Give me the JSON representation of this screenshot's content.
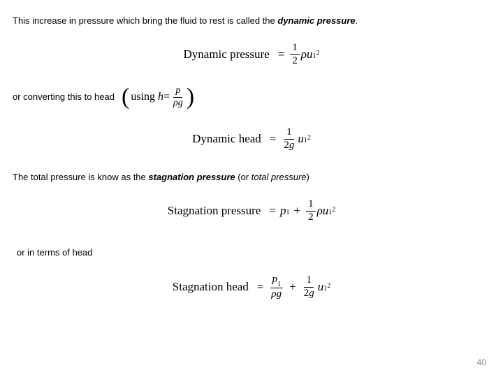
{
  "line1": {
    "before": "This increase in pressure which bring the fluid to rest is called the ",
    "bold": "dynamic pressure",
    "after": "."
  },
  "eq1": {
    "label": "Dynamic pressure",
    "eq": "=",
    "frac_num": "1",
    "frac_den": "2",
    "rho": "ρ",
    "u": "u",
    "sub": "1",
    "sup": "2"
  },
  "line2": {
    "text": "or converting this to head",
    "using": "using ",
    "h": "h",
    "eq": "=",
    "p": "p",
    "rho": "ρ",
    "g": "g"
  },
  "eq2": {
    "label": "Dynamic head",
    "eq": "=",
    "frac_num": "1",
    "frac_den_2": "2",
    "frac_den_g": "g",
    "u": "u",
    "sub": "1",
    "sup": "2"
  },
  "line3": {
    "before": "The total pressure is know as the ",
    "bold": "stagnation pressure",
    "mid": " (or ",
    "italic": "total pressure",
    "after": ")"
  },
  "eq3": {
    "label": "Stagnation pressure",
    "eq": "=",
    "p": "p",
    "psub": "1",
    "plus": "+",
    "frac_num": "1",
    "frac_den": "2",
    "rho": "ρ",
    "u": "u",
    "sub": "1",
    "sup": "2"
  },
  "line4": {
    "text": "or in terms of head"
  },
  "eq4": {
    "label": "Stagnation head",
    "eq": "=",
    "p": "p",
    "psub": "1",
    "rho": "ρ",
    "g": "g",
    "plus": "+",
    "frac_num": "1",
    "frac_den_2": "2",
    "frac_den_g": "g",
    "u": "u",
    "sub": "1",
    "sup": "2"
  },
  "page_number": "40"
}
